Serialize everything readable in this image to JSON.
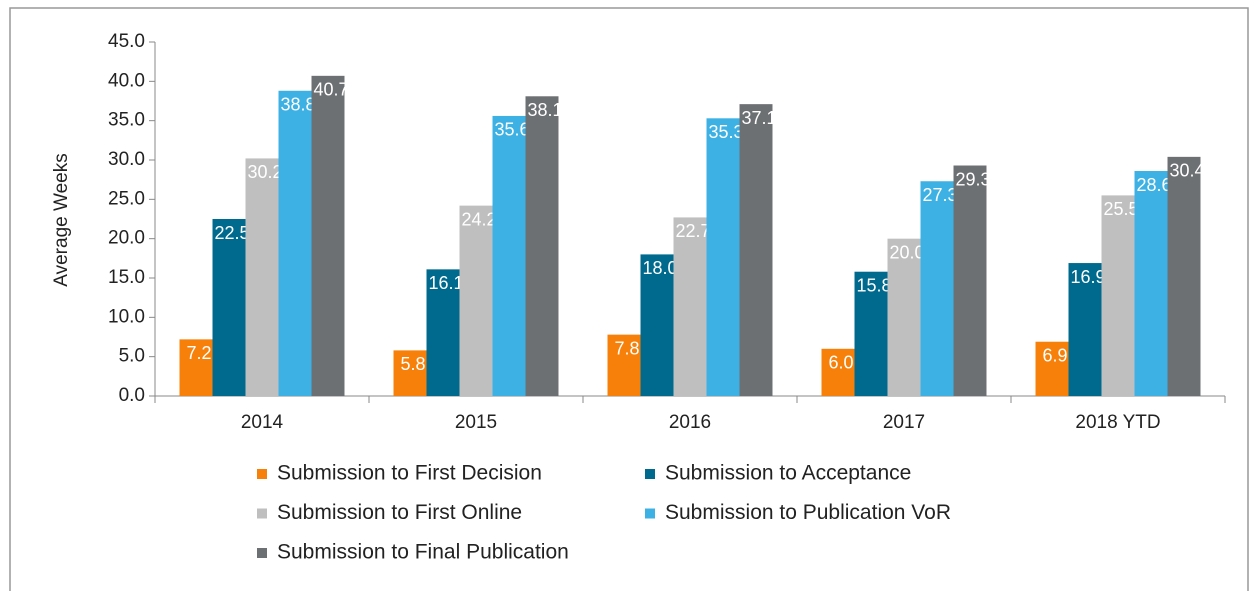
{
  "chart_data": {
    "type": "bar",
    "y_label": "Average Weeks",
    "categories": [
      "2014",
      "2015",
      "2016",
      "2017",
      "2018 YTD"
    ],
    "series": [
      {
        "name": "Submission to First Decision",
        "color": "#f7800a",
        "values": [
          7.2,
          5.8,
          7.8,
          6.0,
          6.9
        ],
        "value_labels": [
          "7.2",
          "5.8",
          "7.8",
          "6.0",
          "6.9"
        ]
      },
      {
        "name": "Submission to Acceptance",
        "color": "#006a8e",
        "values": [
          22.5,
          16.1,
          18.0,
          15.8,
          16.9
        ],
        "value_labels": [
          "22.5",
          "16.1",
          "18.0",
          "15.8",
          "16.9"
        ]
      },
      {
        "name": "Submission to First Online",
        "color": "#bfbfbf",
        "values": [
          30.2,
          24.2,
          22.7,
          20.0,
          25.5
        ],
        "value_labels": [
          "30.2",
          "24.2",
          "22.7",
          "20.0",
          "25.5"
        ]
      },
      {
        "name": "Submission to Publication VoR",
        "color": "#3db1e4",
        "values": [
          38.8,
          35.6,
          35.3,
          27.3,
          28.6
        ],
        "value_labels": [
          "38.8",
          "35.6",
          "35.3",
          "27.3",
          "28.6"
        ]
      },
      {
        "name": "Submission to Final Publication",
        "color": "#6d7073",
        "values": [
          40.7,
          38.1,
          37.1,
          29.3,
          30.4
        ],
        "value_labels": [
          "40.7",
          "38.1",
          "37.1",
          "29.3",
          "30.4"
        ]
      }
    ],
    "ylim": [
      0,
      45
    ],
    "yticks": [
      {
        "value": 0,
        "label": "0.0"
      },
      {
        "value": 5,
        "label": "5.0"
      },
      {
        "value": 10,
        "label": "10.0"
      },
      {
        "value": 15,
        "label": "15.0"
      },
      {
        "value": 20,
        "label": "20.0"
      },
      {
        "value": 25,
        "label": "25.0"
      },
      {
        "value": 30,
        "label": "30.0"
      },
      {
        "value": 35,
        "label": "35.0"
      },
      {
        "value": 40,
        "label": "40.0"
      },
      {
        "value": 45,
        "label": "45.0"
      }
    ],
    "legend": "bottom"
  }
}
